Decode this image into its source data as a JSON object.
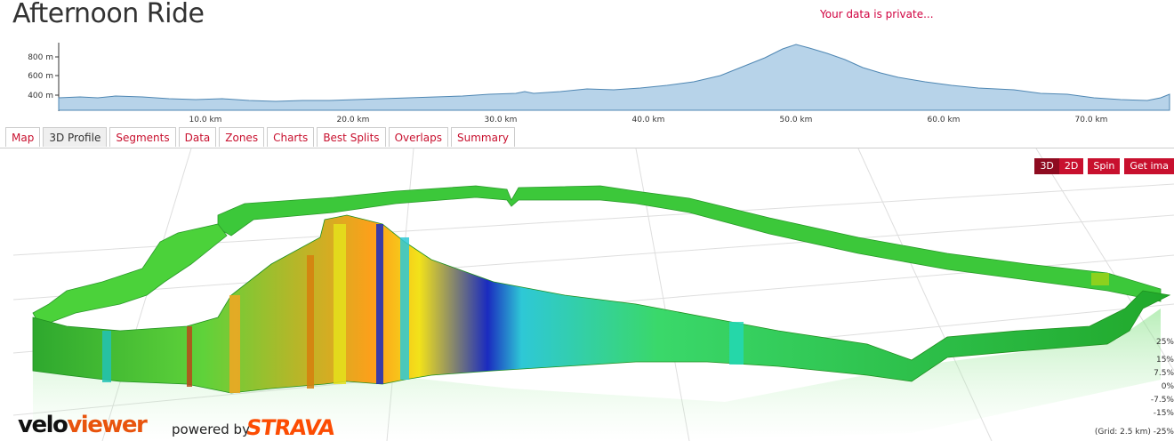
{
  "header": {
    "title": "Afternoon Ride",
    "privacy_notice": "Your data is private..."
  },
  "elevation_chart": {
    "y_ticks": [
      "800 m",
      "600 m",
      "400 m"
    ],
    "x_ticks": [
      "10.0 km",
      "20.0 km",
      "30.0 km",
      "40.0 km",
      "50.0 km",
      "60.0 km",
      "70.0 km"
    ],
    "fill_color": "#b7d3e9",
    "line_color": "#4f87b3"
  },
  "tabs": [
    {
      "label": "Map"
    },
    {
      "label": "3D Profile"
    },
    {
      "label": "Segments"
    },
    {
      "label": "Data"
    },
    {
      "label": "Zones"
    },
    {
      "label": "Charts"
    },
    {
      "label": "Best Splits"
    },
    {
      "label": "Overlaps"
    },
    {
      "label": "Summary"
    }
  ],
  "active_tab": "3D Profile",
  "view_controls": {
    "btn_3d": "3D",
    "btn_2d": "2D",
    "btn_spin": "Spin",
    "btn_image": "Get ima"
  },
  "gradient_legend": [
    "25%",
    "15%",
    "7.5%",
    "0%",
    "-7.5%",
    "-15%",
    "-25%"
  ],
  "grid_info": "(Grid: 2.5 km)",
  "branding": {
    "logo_part1": "velo",
    "logo_part2": "viewer",
    "powered_by": "powered by",
    "partner": "STRAVA"
  },
  "accent_color": "#c8102e"
}
